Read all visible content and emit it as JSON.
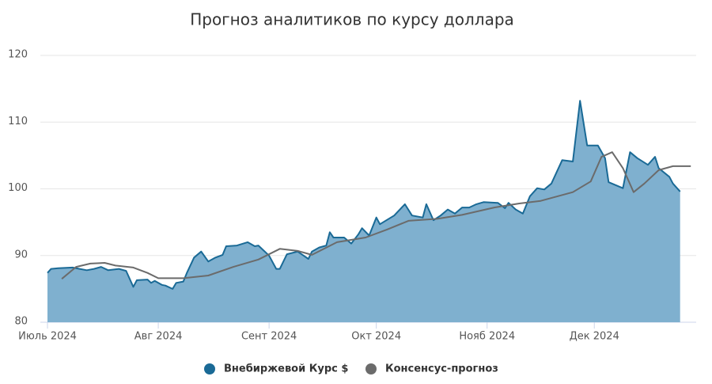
{
  "chart_data": {
    "type": "area",
    "title": "Прогноз аналитиков по курсу доллара",
    "xlim": [
      -2,
      181.5
    ],
    "xticks": [
      {
        "value": 0,
        "label": "Июль 2024"
      },
      {
        "value": 31,
        "label": "Авг 2024"
      },
      {
        "value": 62,
        "label": "Сент 2024"
      },
      {
        "value": 92,
        "label": "Окт 2024"
      },
      {
        "value": 123,
        "label": "Нояб 2024"
      },
      {
        "value": 153,
        "label": "Дек 2024"
      }
    ],
    "ylim": [
      80,
      120
    ],
    "yticks": [
      80,
      90,
      100,
      110,
      120
    ],
    "grid": true,
    "legend": "bottom",
    "series": [
      {
        "name": "Внебиржевой Курс $",
        "type": "area",
        "color": "#1a6a96",
        "fill": "#7fb0cf",
        "x": [
          0,
          1,
          3,
          7,
          9,
          11,
          13,
          15,
          17,
          20,
          22,
          24,
          25,
          28,
          29,
          30,
          32,
          33,
          35,
          36,
          38,
          39,
          41,
          43,
          45,
          47,
          49,
          50,
          53,
          56,
          58,
          59,
          62,
          64,
          65,
          67,
          70,
          73,
          74,
          76,
          78,
          79,
          80,
          83,
          85,
          87,
          88,
          90,
          92,
          93,
          97,
          100,
          102,
          105,
          106,
          108,
          110,
          112,
          114,
          116,
          118,
          120,
          122,
          126,
          128,
          129,
          131,
          133,
          135,
          137,
          139,
          141,
          144,
          147,
          149,
          151,
          154,
          156,
          157,
          161,
          163,
          165,
          168,
          170,
          171,
          174,
          175,
          177
        ],
        "values": [
          87.4,
          88.0,
          88.1,
          88.2,
          88.0,
          87.8,
          88.0,
          88.3,
          87.8,
          88.0,
          87.7,
          85.3,
          86.3,
          86.4,
          85.9,
          86.2,
          85.6,
          85.5,
          85.0,
          85.9,
          86.1,
          87.4,
          89.7,
          90.6,
          89.1,
          89.7,
          90.1,
          91.4,
          91.5,
          92.0,
          91.4,
          91.5,
          90.0,
          88.0,
          88.0,
          90.2,
          90.6,
          89.5,
          90.6,
          91.2,
          91.5,
          93.5,
          92.7,
          92.7,
          91.8,
          93.2,
          94.1,
          93.0,
          95.7,
          94.7,
          96.0,
          97.7,
          96.0,
          95.7,
          97.7,
          95.3,
          96.0,
          96.9,
          96.3,
          97.2,
          97.2,
          97.7,
          98.0,
          97.9,
          97.1,
          97.9,
          96.9,
          96.3,
          98.9,
          100.1,
          99.9,
          100.8,
          104.3,
          104.1,
          113.2,
          106.5,
          106.5,
          104.6,
          101.0,
          100.1,
          105.5,
          104.6,
          103.6,
          104.8,
          103.1,
          101.8,
          100.8,
          99.6
        ]
      },
      {
        "name": "Консенсус-прогноз",
        "type": "line",
        "color": "#6b6b6b",
        "x": [
          4,
          8,
          12,
          16,
          19,
          24,
          28,
          31,
          38,
          45,
          52,
          59,
          65,
          70,
          74,
          81,
          89,
          95,
          101,
          109,
          116,
          125,
          132,
          138,
          147,
          152,
          155,
          158,
          161,
          164,
          167,
          171,
          175,
          180
        ],
        "values": [
          86.5,
          88.3,
          88.8,
          88.9,
          88.5,
          88.2,
          87.4,
          86.6,
          86.6,
          87.0,
          88.3,
          89.4,
          91.0,
          90.7,
          90.1,
          92.0,
          92.7,
          93.9,
          95.2,
          95.5,
          96.1,
          97.2,
          97.8,
          98.2,
          99.5,
          101.1,
          104.8,
          105.5,
          103.1,
          99.5,
          100.8,
          102.8,
          103.4,
          103.4
        ]
      }
    ]
  }
}
